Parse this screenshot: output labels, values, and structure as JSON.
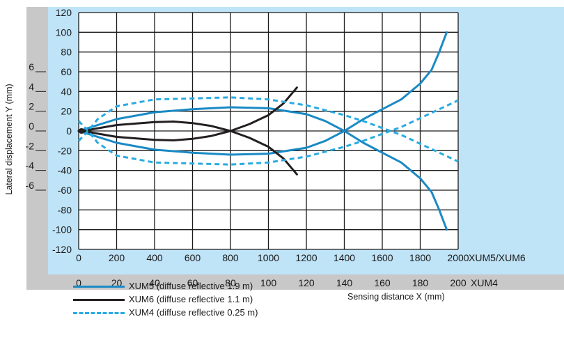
{
  "chart_data": {
    "type": "line",
    "ylabel": "Lateral displacement Y (mm)",
    "xlabel": "Sensing distance X (mm)",
    "y_ticks_outer": [
      "6",
      "4",
      "2",
      "0",
      "-2",
      "-4",
      "-6"
    ],
    "y_ticks_outer_values": [
      60,
      40,
      20,
      0,
      -20,
      -40,
      -60
    ],
    "y_ticks": [
      120,
      100,
      80,
      60,
      40,
      20,
      0,
      -20,
      -40,
      -60,
      -80,
      -100,
      -120
    ],
    "x_ticks": [
      0,
      200,
      400,
      600,
      800,
      1000,
      1200,
      1400,
      1600,
      1800,
      2000
    ],
    "x_ticks_xum4": [
      0,
      20,
      40,
      60,
      80,
      100,
      120,
      140,
      160,
      180,
      200
    ],
    "x_axis_label": "XUM5/XUM6",
    "x_axis_label_xum4": "XUM4",
    "xlim": [
      0,
      2000
    ],
    "ylim": [
      -120,
      120
    ],
    "grid": true,
    "colors": {
      "xum5": "#1a8ac4",
      "xum6": "#231f20",
      "xum4": "#29aae1",
      "bg": "#bfe3f7",
      "frame": "#c8c8c8"
    },
    "series": [
      {
        "name": "XUM5 (diffuse reflective 1.9 m)",
        "style": "solid",
        "color": "#1a8ac4",
        "upper": [
          [
            0,
            0
          ],
          [
            50,
            3
          ],
          [
            200,
            12
          ],
          [
            400,
            19
          ],
          [
            600,
            22
          ],
          [
            800,
            24
          ],
          [
            1000,
            23
          ],
          [
            1200,
            17
          ],
          [
            1300,
            10
          ],
          [
            1400,
            0
          ],
          [
            1500,
            -12
          ],
          [
            1600,
            -22
          ],
          [
            1700,
            -32
          ],
          [
            1800,
            -48
          ],
          [
            1860,
            -62
          ],
          [
            1900,
            -80
          ],
          [
            1940,
            -100
          ]
        ],
        "lower": [
          [
            0,
            0
          ],
          [
            50,
            -3
          ],
          [
            200,
            -12
          ],
          [
            400,
            -19
          ],
          [
            600,
            -22
          ],
          [
            800,
            -24
          ],
          [
            1000,
            -23
          ],
          [
            1200,
            -17
          ],
          [
            1300,
            -10
          ],
          [
            1400,
            0
          ],
          [
            1500,
            12
          ],
          [
            1600,
            22
          ],
          [
            1700,
            32
          ],
          [
            1800,
            48
          ],
          [
            1860,
            62
          ],
          [
            1900,
            80
          ],
          [
            1940,
            100
          ]
        ]
      },
      {
        "name": "XUM6 (diffuse reflective 1.1 m)",
        "style": "solid",
        "color": "#231f20",
        "upper": [
          [
            0,
            0
          ],
          [
            50,
            1
          ],
          [
            200,
            6
          ],
          [
            400,
            9
          ],
          [
            500,
            9.5
          ],
          [
            600,
            8
          ],
          [
            700,
            5
          ],
          [
            800,
            0
          ],
          [
            900,
            -7
          ],
          [
            1000,
            -16
          ],
          [
            1080,
            -28
          ],
          [
            1150,
            -44
          ]
        ],
        "lower": [
          [
            0,
            0
          ],
          [
            50,
            -1
          ],
          [
            200,
            -6
          ],
          [
            400,
            -9
          ],
          [
            500,
            -9.5
          ],
          [
            600,
            -8
          ],
          [
            700,
            -5
          ],
          [
            800,
            0
          ],
          [
            900,
            7
          ],
          [
            1000,
            16
          ],
          [
            1080,
            28
          ],
          [
            1150,
            44
          ]
        ]
      },
      {
        "name": "XUM4 (diffuse reflective 0.25 m)",
        "style": "dashed",
        "color": "#29aae1",
        "upper": [
          [
            0,
            10
          ],
          [
            50,
            0
          ],
          [
            100,
            12
          ],
          [
            200,
            25
          ],
          [
            400,
            32
          ],
          [
            600,
            33
          ],
          [
            800,
            34
          ],
          [
            1000,
            32
          ],
          [
            1200,
            26
          ],
          [
            1400,
            16
          ],
          [
            1500,
            10
          ],
          [
            1600,
            3
          ],
          [
            1700,
            -4
          ],
          [
            1800,
            -13
          ],
          [
            1900,
            -22
          ],
          [
            2000,
            -31
          ]
        ],
        "lower": [
          [
            0,
            -10
          ],
          [
            50,
            0
          ],
          [
            100,
            -12
          ],
          [
            200,
            -25
          ],
          [
            400,
            -32
          ],
          [
            600,
            -33
          ],
          [
            800,
            -34
          ],
          [
            1000,
            -32
          ],
          [
            1200,
            -26
          ],
          [
            1400,
            -16
          ],
          [
            1500,
            -10
          ],
          [
            1600,
            -3
          ],
          [
            1700,
            4
          ],
          [
            1800,
            13
          ],
          [
            1900,
            22
          ],
          [
            2000,
            31
          ]
        ]
      }
    ]
  }
}
